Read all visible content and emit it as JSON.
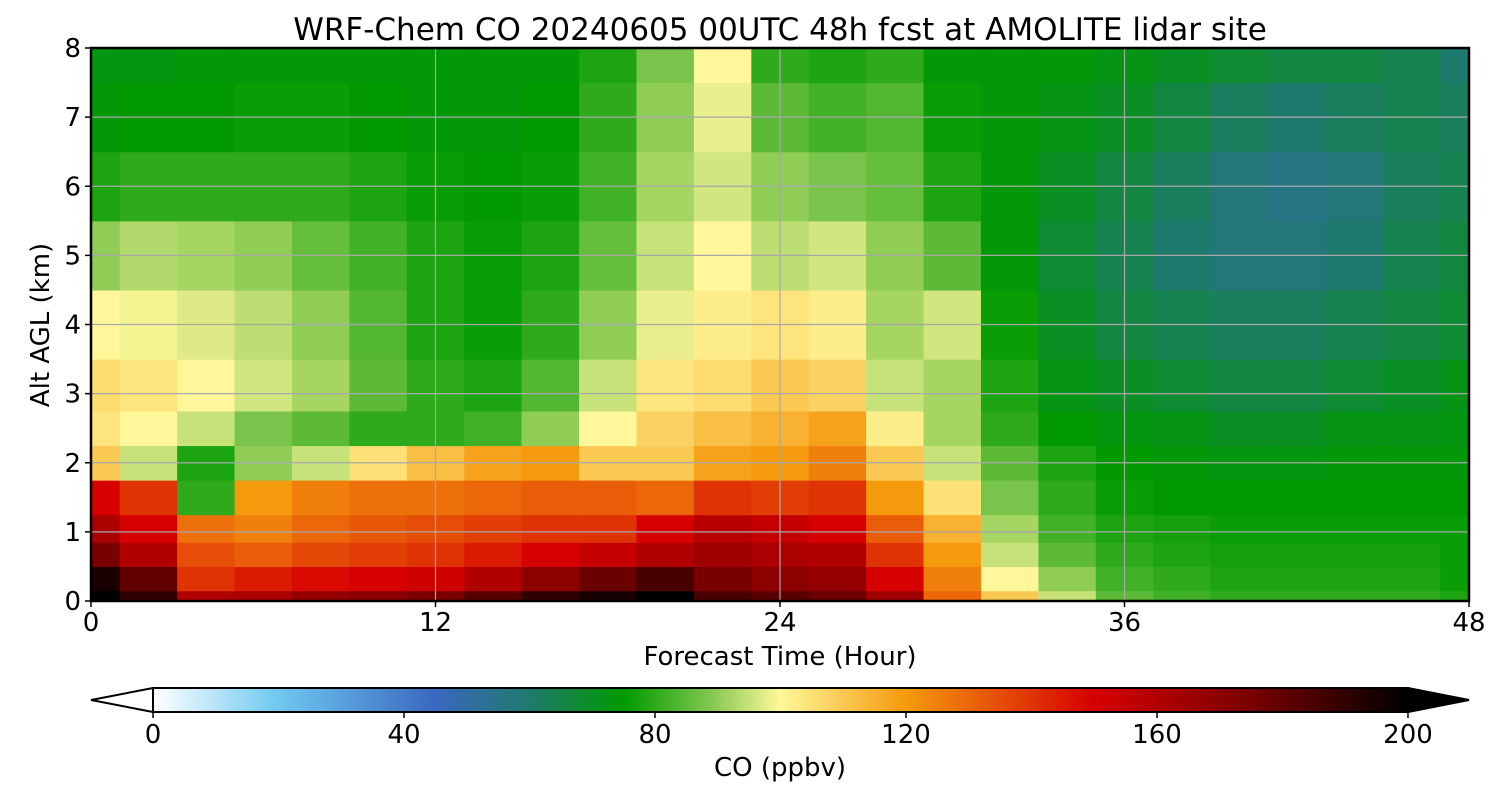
{
  "chart_data": {
    "type": "heatmap",
    "title": "WRF-Chem CO  20240605 00UTC 48h fcst at AMOLITE lidar site",
    "xlabel": "Forecast Time (Hour)",
    "ylabel": "Alt AGL (km)",
    "xlim": [
      0,
      48
    ],
    "ylim": [
      0,
      8
    ],
    "x_ticks": [
      "0",
      "12",
      "24",
      "36",
      "48"
    ],
    "y_ticks": [
      "0",
      "1",
      "2",
      "3",
      "4",
      "5",
      "6",
      "7",
      "8"
    ],
    "grid": true,
    "colorbar": {
      "label": "CO  (ppbv)",
      "range": [
        0,
        200
      ],
      "ticks": [
        "0",
        "40",
        "80",
        "120",
        "160",
        "200"
      ],
      "extend": "both",
      "placement": "bottom",
      "stops": [
        {
          "v": 0,
          "color": "#ffffff"
        },
        {
          "v": 20,
          "color": "#6fc8f0"
        },
        {
          "v": 45,
          "color": "#3a67c0"
        },
        {
          "v": 60,
          "color": "#1f7a6e"
        },
        {
          "v": 75,
          "color": "#009a00"
        },
        {
          "v": 88,
          "color": "#79c44a"
        },
        {
          "v": 100,
          "color": "#fff799"
        },
        {
          "v": 120,
          "color": "#f59a0d"
        },
        {
          "v": 150,
          "color": "#d60000"
        },
        {
          "v": 175,
          "color": "#7a0000"
        },
        {
          "v": 200,
          "color": "#000000"
        }
      ]
    },
    "grid_hours": [
      0,
      2,
      4,
      6,
      8,
      10,
      12,
      14,
      16,
      18,
      20,
      22,
      24,
      26,
      28,
      30,
      32,
      34,
      36,
      38,
      40,
      42,
      44,
      46,
      48
    ],
    "grid_alts_km": [
      0,
      0.3,
      0.7,
      1,
      1.5,
      2,
      2.5,
      3,
      4,
      5,
      6,
      7,
      8
    ],
    "co_ppbv": [
      [
        200,
        190,
        160,
        162,
        168,
        170,
        175,
        182,
        190,
        195,
        200,
        185,
        182,
        178,
        165,
        130,
        110,
        95,
        85,
        82,
        80,
        80,
        80,
        80,
        78
      ],
      [
        195,
        180,
        140,
        145,
        148,
        150,
        152,
        160,
        170,
        178,
        185,
        175,
        170,
        168,
        150,
        125,
        100,
        90,
        82,
        80,
        78,
        78,
        78,
        78,
        76
      ],
      [
        175,
        160,
        135,
        132,
        136,
        138,
        140,
        145,
        150,
        155,
        160,
        165,
        162,
        160,
        140,
        120,
        95,
        85,
        80,
        78,
        77,
        77,
        77,
        77,
        76
      ],
      [
        162,
        150,
        128,
        125,
        130,
        133,
        135,
        138,
        140,
        140,
        150,
        158,
        155,
        150,
        132,
        115,
        92,
        82,
        78,
        77,
        76,
        76,
        76,
        76,
        76
      ],
      [
        150,
        140,
        80,
        120,
        125,
        128,
        128,
        130,
        132,
        132,
        130,
        140,
        138,
        140,
        120,
        105,
        88,
        80,
        76,
        75,
        75,
        75,
        75,
        75,
        75
      ],
      [
        110,
        95,
        78,
        90,
        95,
        105,
        112,
        118,
        120,
        110,
        110,
        118,
        120,
        125,
        110,
        95,
        85,
        78,
        75,
        74,
        73,
        73,
        74,
        74,
        74
      ],
      [
        104,
        100,
        95,
        88,
        85,
        80,
        80,
        82,
        90,
        100,
        108,
        112,
        115,
        118,
        102,
        92,
        80,
        75,
        73,
        72,
        70,
        70,
        72,
        72,
        73
      ],
      [
        106,
        104,
        100,
        96,
        92,
        85,
        80,
        78,
        84,
        95,
        104,
        106,
        110,
        108,
        95,
        92,
        78,
        72,
        70,
        68,
        66,
        66,
        68,
        70,
        72
      ],
      [
        100,
        99,
        97,
        94,
        90,
        84,
        78,
        76,
        80,
        90,
        98,
        102,
        104,
        102,
        92,
        96,
        76,
        70,
        66,
        64,
        62,
        62,
        64,
        66,
        68
      ],
      [
        90,
        93,
        92,
        90,
        86,
        82,
        78,
        76,
        78,
        86,
        95,
        100,
        94,
        96,
        90,
        85,
        74,
        68,
        64,
        60,
        58,
        58,
        60,
        64,
        66
      ],
      [
        78,
        80,
        80,
        80,
        80,
        78,
        76,
        75,
        76,
        82,
        92,
        96,
        90,
        88,
        86,
        78,
        74,
        70,
        66,
        62,
        58,
        56,
        58,
        62,
        64
      ],
      [
        74,
        75,
        75,
        76,
        76,
        75,
        74,
        74,
        75,
        80,
        90,
        98,
        85,
        82,
        84,
        76,
        74,
        72,
        70,
        66,
        62,
        60,
        62,
        64,
        62
      ],
      [
        73,
        73,
        74,
        74,
        74,
        74,
        74,
        74,
        74,
        78,
        88,
        100,
        80,
        78,
        80,
        74,
        74,
        74,
        72,
        70,
        68,
        66,
        66,
        64,
        60
      ]
    ]
  }
}
